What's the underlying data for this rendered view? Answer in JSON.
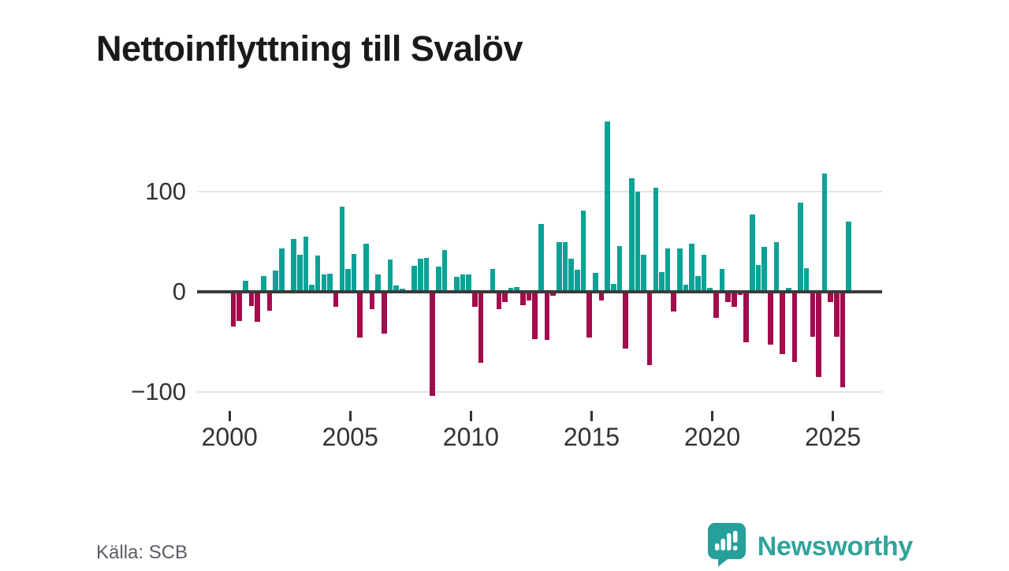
{
  "title": "Nettoinflyttning till Svalöv",
  "source": "Källa: SCB",
  "branding": {
    "name": "Newsworthy",
    "logo_icon": "newsworthy-speech-bubble-bar-chart-icon"
  },
  "colors": {
    "positive_bar": "#0aa296",
    "negative_bar": "#a30b4b",
    "zero_axis": "#3a3a3a",
    "gridline": "#e3e3e3",
    "title_text": "#1a1a1a",
    "axis_label_text": "#333333",
    "source_text": "#5c5c66",
    "brand_teal": "#2fa49c"
  },
  "chart_data": {
    "type": "bar",
    "title": "Nettoinflyttning till Svalöv",
    "xlabel": "",
    "ylabel": "",
    "frequency": "quarterly",
    "start_period": "2000-Q1",
    "end_period": "2025-Q3",
    "y_ticks": [
      100,
      0,
      -100
    ],
    "y_tick_labels": [
      "100",
      "0",
      "−100"
    ],
    "x_tick_years": [
      2000,
      2005,
      2010,
      2015,
      2020,
      2025
    ],
    "x_tick_labels": [
      "2000",
      "2005",
      "2010",
      "2015",
      "2020",
      "2025"
    ],
    "ylim": [
      -130,
      185
    ],
    "grid": "horizontal",
    "legend": "none",
    "values": [
      -35,
      -29,
      11,
      -14,
      -30,
      16,
      -19,
      21,
      43,
      0,
      53,
      37,
      55,
      7,
      36,
      17,
      18,
      -15,
      85,
      23,
      38,
      -46,
      48,
      -17,
      17,
      -42,
      32,
      6,
      3,
      0,
      26,
      33,
      34,
      -104,
      25,
      42,
      0,
      15,
      17,
      17,
      -15,
      -71,
      0,
      23,
      -17,
      -10,
      4,
      5,
      -13,
      -9,
      -47,
      68,
      -48,
      -4,
      50,
      50,
      33,
      22,
      81,
      -46,
      19,
      -9,
      170,
      8,
      46,
      -57,
      113,
      100,
      37,
      -73,
      104,
      20,
      43,
      -20,
      43,
      7,
      48,
      16,
      37,
      4,
      -26,
      23,
      -10,
      -15,
      -3,
      -50,
      77,
      27,
      45,
      -53,
      50,
      -62,
      4,
      -70,
      89,
      24,
      -45,
      -85,
      118,
      -10,
      -45,
      -95,
      70
    ]
  }
}
